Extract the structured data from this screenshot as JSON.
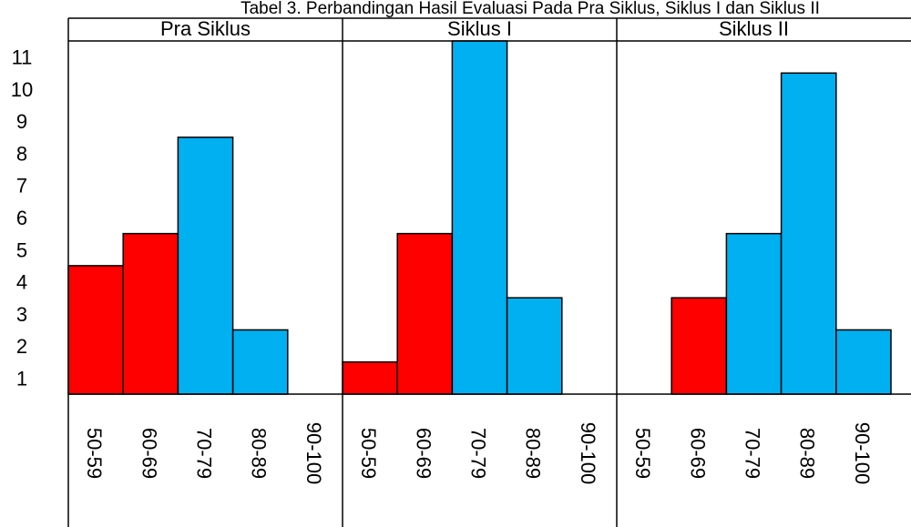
{
  "chart_data": {
    "type": "bar",
    "title": "Tabel 3. Perbandingan Hasil Evaluasi Pada Pra Siklus, Siklus I dan Siklus II",
    "groups": [
      "Pra Siklus",
      "Siklus I",
      "Siklus II"
    ],
    "categories": [
      "50-59",
      "60-69",
      "70-79",
      "80-89",
      "90-100"
    ],
    "series": [
      {
        "group": "Pra Siklus",
        "values": [
          4.5,
          5.5,
          8.5,
          2.5,
          0
        ]
      },
      {
        "group": "Siklus I",
        "values": [
          1.5,
          5.5,
          11.5,
          3.5,
          0
        ]
      },
      {
        "group": "Siklus II",
        "values": [
          0,
          3.5,
          5.5,
          10.5,
          2.5
        ]
      }
    ],
    "yticks": [
      "1",
      "2",
      "3",
      "4",
      "5",
      "6",
      "7",
      "8",
      "9",
      "10",
      "11"
    ],
    "ylim": [
      0.5,
      11.5
    ],
    "grid": false,
    "colors": {
      "below_70": "#ff0000",
      "from_70": "#00b0f0",
      "stroke": "#000000"
    }
  }
}
